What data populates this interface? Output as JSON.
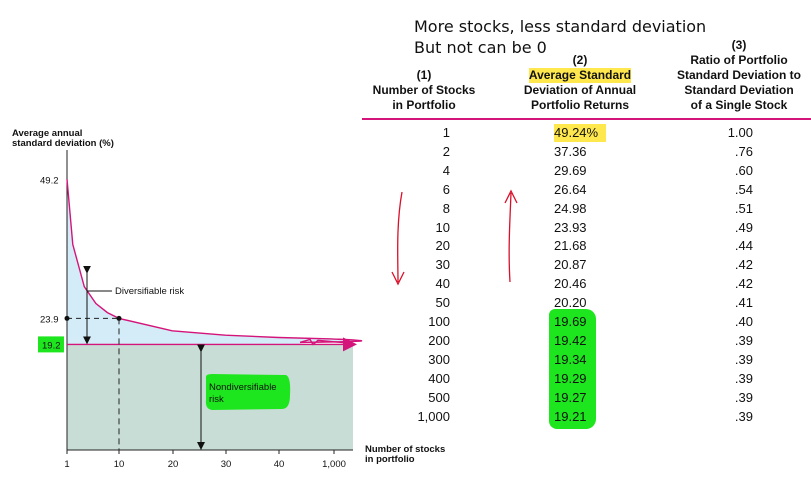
{
  "annotation": {
    "line1": "More stocks, less standard deviation",
    "line2": "But not can be 0"
  },
  "chart_data": {
    "type": "area",
    "ylabel": "Average annual standard deviation (%)",
    "xlabel": "Number of stocks in portfolio",
    "x_ticks": [
      "1",
      "10",
      "20",
      "30",
      "40",
      "1,000"
    ],
    "y_ticks": [
      "49.2",
      "23.9",
      "19.2"
    ],
    "x": [
      1,
      2,
      4,
      6,
      8,
      10,
      20,
      30,
      40,
      50
    ],
    "y": [
      49.24,
      37.36,
      29.69,
      26.64,
      24.98,
      23.93,
      21.68,
      20.87,
      20.46,
      20.2
    ],
    "ylim": [
      0,
      60
    ],
    "asymptote": 19.2,
    "regions": {
      "diversifiable": "Diversifiable risk",
      "nondiversifiable_line1": "Nondiversifiable",
      "nondiversifiable_line2": "risk"
    },
    "colors": {
      "curve": "#d4147a",
      "diversifiable_fill": "#d3ecf7",
      "nondiversifiable_fill": "#c9ddd7",
      "highlight": "#1ee61e"
    }
  },
  "table": {
    "headers": [
      {
        "num": "(1)",
        "lines": [
          "Number of Stocks",
          "in Portfolio"
        ]
      },
      {
        "num": "(2)",
        "lines": [
          "Average Standard",
          "Deviation of Annual",
          "Portfolio Returns"
        ]
      },
      {
        "num": "(3)",
        "lines": [
          "Ratio of Portfolio",
          "Standard Deviation to",
          "Standard Deviation",
          "of a Single Stock"
        ]
      }
    ],
    "rows": [
      [
        "1",
        "49.24%",
        "1.00"
      ],
      [
        "2",
        "37.36",
        ".76"
      ],
      [
        "4",
        "29.69",
        ".60"
      ],
      [
        "6",
        "26.64",
        ".54"
      ],
      [
        "8",
        "24.98",
        ".51"
      ],
      [
        "10",
        "23.93",
        ".49"
      ],
      [
        "20",
        "21.68",
        ".44"
      ],
      [
        "30",
        "20.87",
        ".42"
      ],
      [
        "40",
        "20.46",
        ".42"
      ],
      [
        "50",
        "20.20",
        ".41"
      ],
      [
        "100",
        "19.69",
        ".40"
      ],
      [
        "200",
        "19.42",
        ".39"
      ],
      [
        "300",
        "19.34",
        ".39"
      ],
      [
        "400",
        "19.29",
        ".39"
      ],
      [
        "500",
        "19.27",
        ".39"
      ],
      [
        "1,000",
        "19.21",
        ".39"
      ]
    ]
  }
}
